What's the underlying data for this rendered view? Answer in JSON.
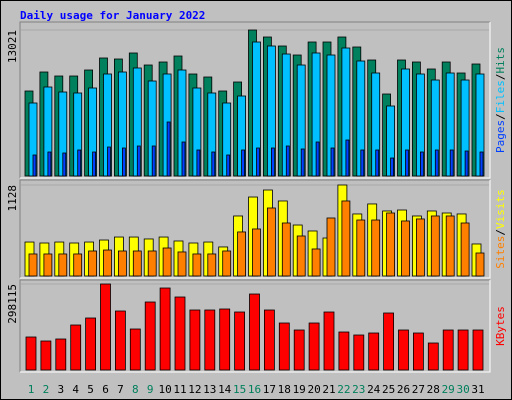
{
  "title": "Daily usage for January 2022",
  "chart_data": [
    {
      "type": "bar",
      "ylim": [
        0,
        13021
      ],
      "yticks": [
        13021
      ],
      "legend_separator": "/",
      "series": [
        {
          "name": "Hits",
          "color": "#00805c",
          "values": [
            7580,
            9275,
            8918,
            8918,
            9453,
            10524,
            10434,
            10970,
            9899,
            10167,
            10702,
            9097,
            8829,
            7580,
            8383,
            13021,
            12396,
            11594,
            10791,
            11950,
            11950,
            12396,
            11505,
            10345,
            7313,
            10345,
            10167,
            9543,
            10167,
            9186,
            9988
          ]
        },
        {
          "name": "Files",
          "color": "#00c0ff",
          "values": [
            6510,
            7937,
            7491,
            7402,
            7848,
            9097,
            9275,
            9632,
            8472,
            9097,
            9453,
            7848,
            7402,
            6510,
            7134,
            11950,
            11594,
            10880,
            9899,
            10970,
            10791,
            11415,
            10256,
            9186,
            6243,
            9543,
            9097,
            8561,
            9186,
            8561,
            9097
          ]
        },
        {
          "name": "Pages",
          "color": "#0040ff",
          "values": [
            1873,
            2140,
            2051,
            2319,
            2140,
            2586,
            2497,
            2675,
            2675,
            4816,
            3032,
            2319,
            2140,
            1873,
            2319,
            2497,
            2497,
            2675,
            2408,
            3032,
            2497,
            3210,
            2319,
            2319,
            1605,
            2319,
            2140,
            2319,
            2319,
            2229,
            2140
          ]
        }
      ]
    },
    {
      "type": "bar",
      "ylim": [
        0,
        1128
      ],
      "yticks": [
        1128
      ],
      "legend_separator": "/",
      "series": [
        {
          "name": "Visits",
          "color": "#ffff00",
          "values": [
            421,
            409,
            421,
            409,
            421,
            446,
            483,
            483,
            459,
            483,
            434,
            409,
            421,
            360,
            744,
            979,
            1066,
            930,
            632,
            558,
            471,
            1128,
            769,
            893,
            806,
            818,
            744,
            806,
            781,
            769,
            397
          ]
        },
        {
          "name": "Sites",
          "color": "#ff8000",
          "values": [
            273,
            273,
            273,
            273,
            310,
            322,
            310,
            310,
            310,
            347,
            298,
            273,
            273,
            310,
            546,
            583,
            843,
            657,
            496,
            335,
            719,
            930,
            694,
            694,
            781,
            682,
            707,
            744,
            744,
            657,
            285
          ]
        }
      ]
    },
    {
      "type": "bar",
      "ylim": [
        0,
        298115
      ],
      "yticks": [
        298115
      ],
      "categories": [
        "1",
        "2",
        "3",
        "4",
        "5",
        "6",
        "7",
        "8",
        "9",
        "10",
        "11",
        "12",
        "13",
        "14",
        "15",
        "16",
        "17",
        "18",
        "19",
        "20",
        "21",
        "22",
        "23",
        "24",
        "25",
        "26",
        "27",
        "28",
        "29",
        "30",
        "31"
      ],
      "label_colors": [
        "#00805c",
        "#00805c",
        "#000000",
        "#000000",
        "#000000",
        "#000000",
        "#000000",
        "#00805c",
        "#00805c",
        "#000000",
        "#000000",
        "#000000",
        "#000000",
        "#000000",
        "#00805c",
        "#00805c",
        "#000000",
        "#000000",
        "#000000",
        "#000000",
        "#000000",
        "#00805c",
        "#00805c",
        "#000000",
        "#000000",
        "#000000",
        "#000000",
        "#000000",
        "#00805c",
        "#00805c",
        "#000000"
      ],
      "series": [
        {
          "name": "KBytes",
          "color": "#ff0000",
          "values": [
            114388,
            100517,
            107450,
            155975,
            180237,
            298115,
            204500,
            142111,
            235695,
            284222,
            253030,
            207967,
            207967,
            211433,
            201034,
            263428,
            207967,
            162908,
            138645,
            162908,
            201034,
            131713,
            121315,
            128247,
            197568,
            138645,
            128247,
            93585,
            138645,
            138645,
            138645
          ]
        }
      ]
    }
  ]
}
